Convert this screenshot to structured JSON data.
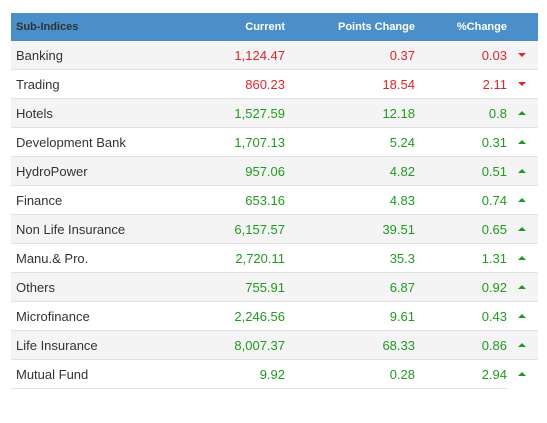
{
  "table": {
    "header": [
      "Sub-Indices",
      "Current",
      "Points Change",
      "%Change"
    ],
    "rows": [
      {
        "cells": [
          "Banking",
          "1,124.47",
          "0.37",
          "0.03"
        ],
        "trend": "down"
      },
      {
        "cells": [
          "Trading",
          "860.23",
          "18.54",
          "2.11"
        ],
        "trend": "down"
      },
      {
        "cells": [
          "Hotels",
          "1,527.59",
          "12.18",
          "0.8"
        ],
        "trend": "up"
      },
      {
        "cells": [
          "Development Bank",
          "1,707.13",
          "5.24",
          "0.31"
        ],
        "trend": "up"
      },
      {
        "cells": [
          "HydroPower",
          "957.06",
          "4.82",
          "0.51"
        ],
        "trend": "up"
      },
      {
        "cells": [
          "Finance",
          "653.16",
          "4.83",
          "0.74"
        ],
        "trend": "up"
      },
      {
        "cells": [
          "Non Life Insurance",
          "6,157.57",
          "39.51",
          "0.65"
        ],
        "trend": "up"
      },
      {
        "cells": [
          "Manu.& Pro.",
          "2,720.11",
          "35.3",
          "1.31"
        ],
        "trend": "up"
      },
      {
        "cells": [
          "Others",
          "755.91",
          "6.87",
          "0.92"
        ],
        "trend": "up"
      },
      {
        "cells": [
          "Microfinance",
          "2,246.56",
          "9.61",
          "0.43"
        ],
        "trend": "up"
      },
      {
        "cells": [
          "Life Insurance",
          "8,007.37",
          "68.33",
          "0.86"
        ],
        "trend": "up"
      },
      {
        "cells": [
          "Mutual Fund",
          "9.92",
          "0.28",
          "2.94"
        ],
        "trend": "up"
      }
    ]
  }
}
